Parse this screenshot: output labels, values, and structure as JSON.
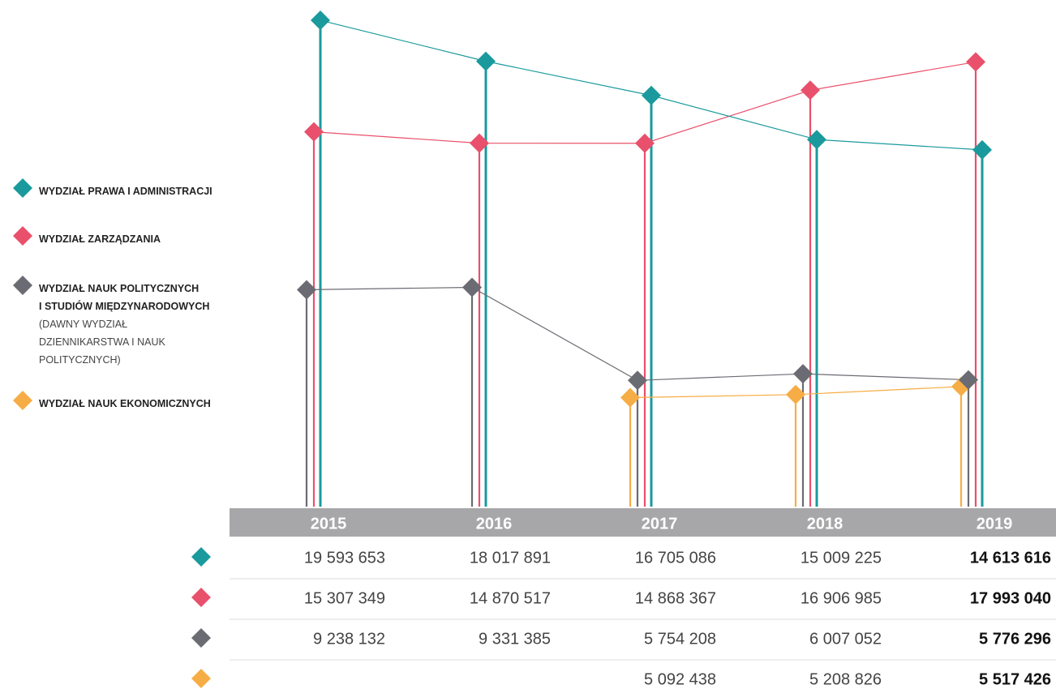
{
  "chart_data": {
    "type": "line",
    "categories": [
      "2015",
      "2016",
      "2017",
      "2018",
      "2019"
    ],
    "ylim": [
      0,
      20000000
    ],
    "series": [
      {
        "name": "WYDZIAŁ PRAWA I ADMINISTRACJI",
        "color": "#1a9a9c",
        "values": [
          19593653,
          18017891,
          16705086,
          15009225,
          14613616
        ],
        "value_labels": [
          "19 593 653",
          "18 017 891",
          "16 705 086",
          "15 009 225",
          "14 613 616"
        ]
      },
      {
        "name": "WYDZIAŁ ZARZĄDZANIA",
        "color": "#e9506b",
        "values": [
          15307349,
          14870517,
          14868367,
          16906985,
          17993040
        ],
        "value_labels": [
          "15 307 349",
          "14 870 517",
          "14 868 367",
          "16 906 985",
          "17 993 040"
        ]
      },
      {
        "name": "WYDZIAŁ NAUK POLITYCZNYCH\nI STUDIÓW MIĘDZYNARODOWYCH",
        "note": "(DAWNY WYDZIAŁ\nDZIENNIKARSTWA I NAUK\nPOLITYCZNYCH)",
        "color": "#6b6b73",
        "values": [
          9238132,
          9331385,
          5754208,
          6007052,
          5776296
        ],
        "value_labels": [
          "9 238 132",
          "9 331 385",
          "5 754 208",
          "6 007 052",
          "5 776 296"
        ]
      },
      {
        "name": "WYDZIAŁ NAUK EKONOMICZNYCH",
        "color": "#f6ad45",
        "values": [
          null,
          null,
          5092438,
          5208826,
          5517426
        ],
        "value_labels": [
          null,
          null,
          "5 092 438",
          "5 208 826",
          "5 517 426"
        ]
      }
    ]
  }
}
